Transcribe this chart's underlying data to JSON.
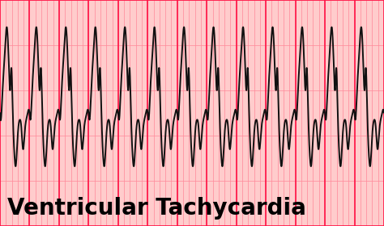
{
  "background_color": "#FFFFFF",
  "grid_bg_color": "#FFCCCC",
  "grid_minor_color": "#FF8899",
  "grid_major_color": "#FF1144",
  "ecg_color": "#111111",
  "ecg_linewidth": 1.4,
  "title_text": "Ventricular Tachycardia",
  "title_fontsize": 20,
  "title_fontweight": "bold",
  "title_color": "#000000",
  "num_beats": 13,
  "beat_period": 1.0,
  "ecg_baseline": 0.5,
  "ecg_amplitude": 0.38,
  "xlim": [
    0,
    13.0
  ],
  "ylim": [
    0,
    1.0
  ],
  "minor_step": 0.2,
  "major_step": 1.0
}
